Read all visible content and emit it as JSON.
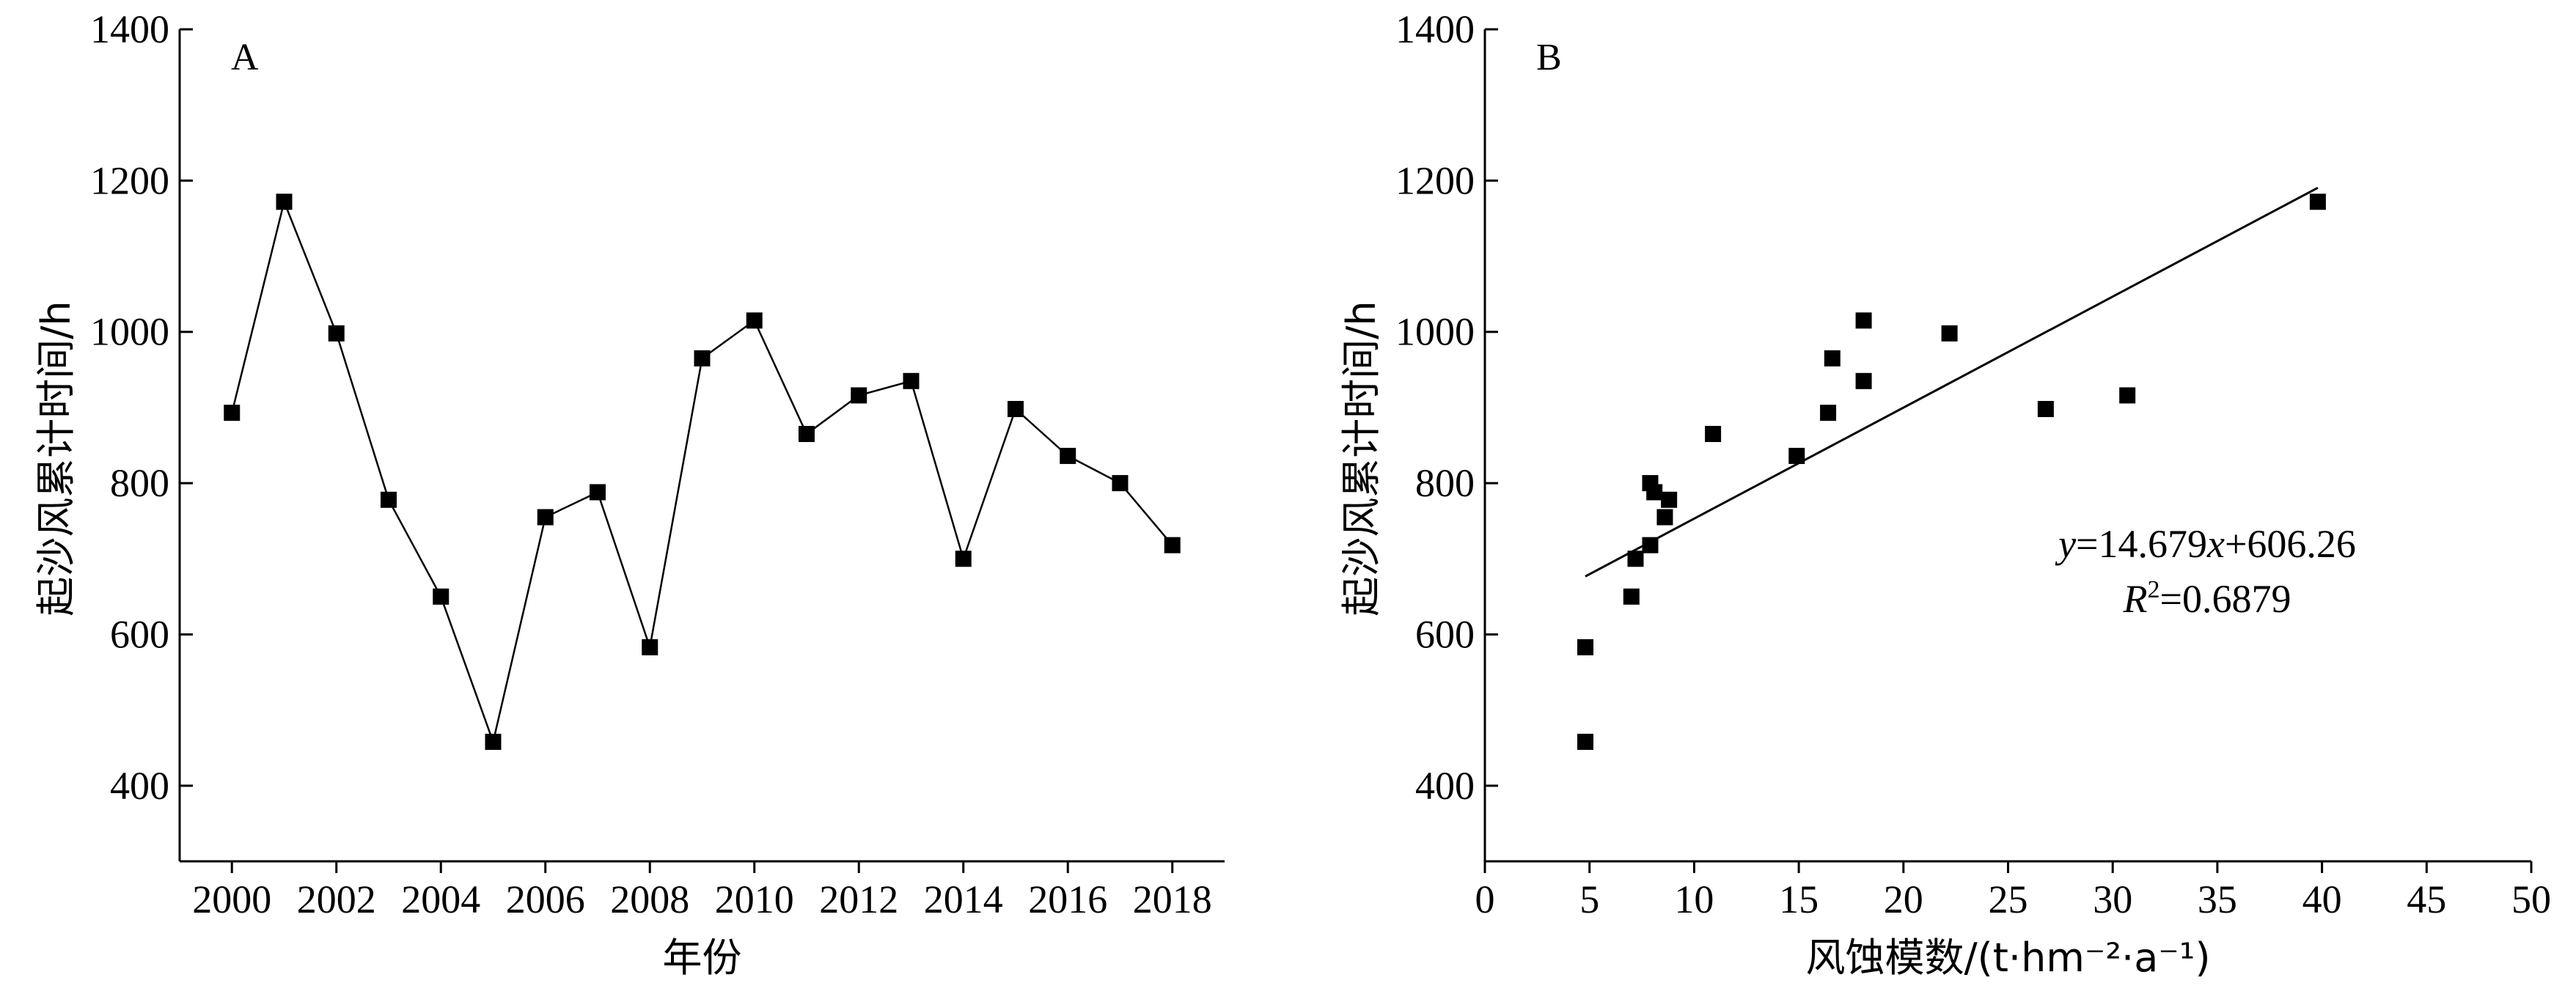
{
  "chart_data": [
    {
      "type": "line",
      "panel_label": "A",
      "xlabel": "年份",
      "ylabel": "起沙风累计时间/h",
      "ylim": [
        300,
        1400
      ],
      "yticks": [
        400,
        600,
        800,
        1000,
        1200,
        1400
      ],
      "xlim": [
        1999,
        2019
      ],
      "xticks": [
        2000,
        2002,
        2004,
        2006,
        2008,
        2010,
        2012,
        2014,
        2016,
        2018
      ],
      "grid": false,
      "x": [
        2000,
        2001,
        2002,
        2003,
        2004,
        2005,
        2006,
        2007,
        2008,
        2009,
        2010,
        2011,
        2012,
        2013,
        2014,
        2015,
        2016,
        2017,
        2018
      ],
      "values": [
        893,
        1172,
        998,
        778,
        650,
        458,
        755,
        788,
        583,
        965,
        1015,
        865,
        916,
        935,
        700,
        898,
        836,
        800,
        718
      ]
    },
    {
      "type": "scatter",
      "panel_label": "B",
      "xlabel": "风蚀模数/(t·hm⁻²·a⁻¹)",
      "ylabel": "起沙风累计时间/h",
      "ylim": [
        300,
        1400
      ],
      "yticks": [
        400,
        600,
        800,
        1000,
        1200,
        1400
      ],
      "xlim": [
        0,
        50
      ],
      "xticks": [
        0,
        5,
        10,
        15,
        20,
        25,
        30,
        35,
        40,
        45,
        50
      ],
      "grid": false,
      "points": [
        [
          4.8,
          583
        ],
        [
          4.8,
          458
        ],
        [
          7.0,
          650
        ],
        [
          7.2,
          700
        ],
        [
          7.9,
          718
        ],
        [
          7.9,
          800
        ],
        [
          8.1,
          788
        ],
        [
          8.6,
          755
        ],
        [
          8.8,
          778
        ],
        [
          10.9,
          865
        ],
        [
          14.9,
          836
        ],
        [
          16.4,
          893
        ],
        [
          16.6,
          965
        ],
        [
          18.1,
          1015
        ],
        [
          18.1,
          935
        ],
        [
          22.2,
          998
        ],
        [
          26.8,
          898
        ],
        [
          30.7,
          916
        ],
        [
          39.8,
          1172
        ]
      ],
      "fit": {
        "slope": 14.679,
        "intercept": 606.26,
        "x_range": [
          4.8,
          39.8
        ]
      },
      "equation": {
        "y_var": "y",
        "equals": "=14.679",
        "x_var": "x",
        "rest": "+606.26",
        "r_var": "R",
        "r_sup": "2",
        "r_rest": "=0.6879"
      }
    }
  ]
}
